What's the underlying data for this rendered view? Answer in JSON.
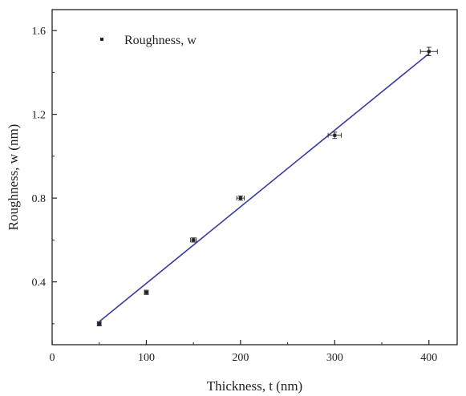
{
  "chart_data": {
    "type": "scatter",
    "xlabel": "Thickness, t (nm)",
    "ylabel": "Roughness, w (nm)",
    "xlim": [
      0,
      430
    ],
    "ylim": [
      0.1,
      1.7
    ],
    "xticks": [
      0,
      100,
      200,
      300,
      400
    ],
    "xtick_labels": [
      "0",
      "100",
      "200",
      "300",
      "400"
    ],
    "yticks": [
      0.4,
      0.8,
      1.2,
      1.6
    ],
    "ytick_labels": [
      "0.4",
      "0.8",
      "1.2",
      "1.6"
    ],
    "grid": false,
    "legend": {
      "position": "top-left",
      "entries": [
        "Roughness, w"
      ]
    },
    "series": [
      {
        "name": "Roughness, w",
        "x": [
          50,
          100,
          150,
          200,
          300,
          400
        ],
        "y": [
          0.2,
          0.35,
          0.6,
          0.8,
          1.1,
          1.5
        ],
        "x_err": [
          2,
          2,
          3,
          4,
          7,
          9
        ],
        "y_err": [
          0.01,
          0.01,
          0.01,
          0.01,
          0.015,
          0.02
        ],
        "color": "#222222"
      }
    ],
    "fit_line": {
      "x": [
        50,
        400
      ],
      "y": [
        0.21,
        1.49
      ],
      "color": "#3a3aa0"
    }
  }
}
